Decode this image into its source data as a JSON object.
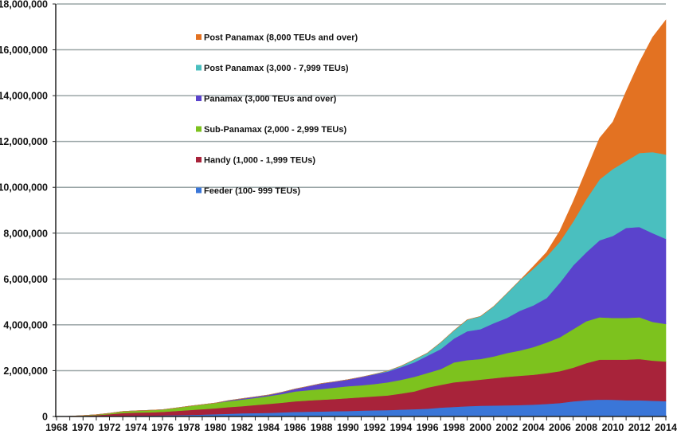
{
  "chart_data": {
    "type": "area",
    "stacked": true,
    "title": "",
    "xlabel": "",
    "ylabel": "",
    "ylim": [
      0,
      18000000
    ],
    "yticks": [
      0,
      2000000,
      4000000,
      6000000,
      8000000,
      10000000,
      12000000,
      14000000,
      16000000,
      18000000
    ],
    "ytick_labels": [
      "0",
      "2,000,000",
      "4,000,000",
      "6,000,000",
      "8,000,000",
      "10,000,000",
      "12,000,000",
      "14,000,000",
      "16,000,000",
      "18,000,000"
    ],
    "xlim": [
      1968,
      2014
    ],
    "xtick_labels": [
      "1968",
      "1970",
      "1972",
      "1974",
      "1976",
      "1978",
      "1980",
      "1982",
      "1984",
      "1986",
      "1988",
      "1990",
      "1992",
      "1994",
      "1996",
      "1998",
      "2000",
      "2002",
      "2004",
      "2006",
      "2008",
      "2010",
      "2012",
      "2014"
    ],
    "grid": true,
    "legend_position": "upper-left-inside",
    "x": [
      1968,
      1969,
      1970,
      1971,
      1972,
      1973,
      1974,
      1975,
      1976,
      1977,
      1978,
      1979,
      1980,
      1981,
      1982,
      1983,
      1984,
      1985,
      1986,
      1987,
      1988,
      1989,
      1990,
      1991,
      1992,
      1993,
      1994,
      1995,
      1996,
      1997,
      1998,
      1999,
      2000,
      2001,
      2002,
      2003,
      2004,
      2005,
      2006,
      2007,
      2008,
      2009,
      2010,
      2011,
      2012,
      2013,
      2014
    ],
    "series": [
      {
        "name": "Feeder (100- 999 TEUs)",
        "color": "#3a76d8",
        "values": [
          0,
          0,
          5000,
          10000,
          20000,
          30000,
          35000,
          40000,
          50000,
          60000,
          70000,
          85000,
          100000,
          120000,
          140000,
          150000,
          160000,
          180000,
          200000,
          210000,
          220000,
          230000,
          240000,
          260000,
          270000,
          280000,
          300000,
          320000,
          340000,
          390000,
          420000,
          450000,
          470000,
          480000,
          490000,
          500000,
          520000,
          550000,
          590000,
          660000,
          710000,
          740000,
          730000,
          710000,
          710000,
          690000,
          670000
        ]
      },
      {
        "name": "Handy (1,000 - 1,999 TEUs)",
        "color": "#a8233a",
        "values": [
          0,
          10000,
          25000,
          50000,
          80000,
          120000,
          135000,
          140000,
          150000,
          180000,
          210000,
          235000,
          260000,
          290000,
          310000,
          350000,
          390000,
          420000,
          460000,
          490000,
          510000,
          530000,
          560000,
          580000,
          610000,
          640000,
          700000,
          770000,
          920000,
          990000,
          1070000,
          1100000,
          1140000,
          1190000,
          1240000,
          1280000,
          1300000,
          1340000,
          1390000,
          1470000,
          1620000,
          1740000,
          1750000,
          1770000,
          1800000,
          1750000,
          1730000
        ]
      },
      {
        "name": "Sub-Panamax (2,000 - 2,999 TEUs)",
        "color": "#7dc21e",
        "values": [
          0,
          0,
          10000,
          20000,
          40000,
          70000,
          80000,
          90000,
          100000,
          130000,
          170000,
          200000,
          230000,
          260000,
          290000,
          310000,
          340000,
          380000,
          430000,
          450000,
          470000,
          500000,
          520000,
          520000,
          540000,
          570000,
          600000,
          640000,
          640000,
          690000,
          870000,
          910000,
          900000,
          950000,
          1040000,
          1100000,
          1210000,
          1340000,
          1480000,
          1680000,
          1830000,
          1850000,
          1820000,
          1820000,
          1820000,
          1690000,
          1640000
        ]
      },
      {
        "name": "Panamax (3,000 TEUs and over)",
        "color": "#5a43cc",
        "values": [
          0,
          0,
          0,
          0,
          0,
          0,
          0,
          0,
          0,
          0,
          0,
          0,
          0,
          30000,
          40000,
          50000,
          50000,
          80000,
          110000,
          170000,
          240000,
          260000,
          290000,
          360000,
          420000,
          470000,
          550000,
          630000,
          750000,
          870000,
          1040000,
          1260000,
          1300000,
          1450000,
          1530000,
          1740000,
          1820000,
          1940000,
          2380000,
          2780000,
          3010000,
          3360000,
          3580000,
          3930000,
          3940000,
          3870000,
          3710000
        ]
      },
      {
        "name": "Post Panamax (3,000 - 7,999 TEUs)",
        "color": "#4abfbf",
        "values": [
          0,
          0,
          0,
          0,
          0,
          0,
          0,
          0,
          0,
          0,
          0,
          0,
          0,
          0,
          0,
          0,
          0,
          0,
          0,
          0,
          0,
          0,
          0,
          0,
          10000,
          30000,
          50000,
          120000,
          120000,
          290000,
          350000,
          500000,
          560000,
          730000,
          1070000,
          1330000,
          1600000,
          1810000,
          1790000,
          1910000,
          2320000,
          2660000,
          2920000,
          2920000,
          3230000,
          3540000,
          3680000
        ]
      },
      {
        "name": "Post Panamax (8,000 TEUs and over)",
        "color": "#e37222",
        "values": [
          0,
          0,
          0,
          0,
          0,
          0,
          0,
          0,
          0,
          0,
          0,
          0,
          0,
          0,
          0,
          0,
          0,
          0,
          0,
          0,
          0,
          0,
          0,
          0,
          0,
          0,
          0,
          0,
          0,
          0,
          0,
          0,
          0,
          0,
          0,
          0,
          100000,
          190000,
          470000,
          870000,
          1270000,
          1800000,
          2050000,
          3030000,
          3950000,
          5010000,
          5870000
        ]
      }
    ],
    "legend": [
      {
        "label": "Post Panamax (8,000 TEUs and over)",
        "color": "#e37222"
      },
      {
        "label": "Post Panamax (3,000 - 7,999 TEUs)",
        "color": "#4abfbf"
      },
      {
        "label": "Panamax (3,000 TEUs and over)",
        "color": "#5a43cc"
      },
      {
        "label": "Sub-Panamax (2,000 - 2,999 TEUs)",
        "color": "#7dc21e"
      },
      {
        "label": "Handy (1,000 - 1,999 TEUs)",
        "color": "#a8233a"
      },
      {
        "label": "Feeder (100- 999 TEUs)",
        "color": "#3a76d8"
      }
    ],
    "colors": {
      "gridline": "#9aa5a6",
      "axis": "#222222",
      "text": "#111111"
    }
  }
}
